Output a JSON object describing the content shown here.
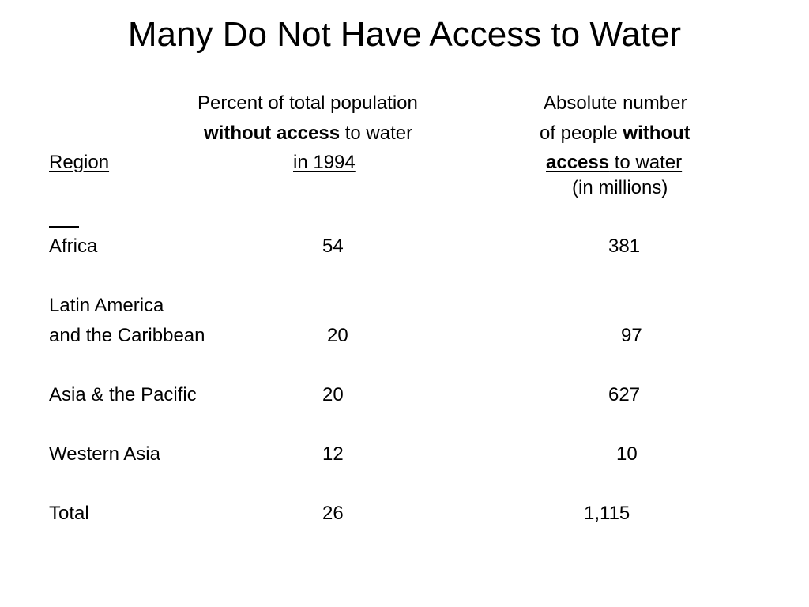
{
  "slide": {
    "title": "Many Do Not Have Access to Water"
  },
  "table": {
    "col_region_header": "Region",
    "col_percent_header": {
      "line1": "Percent of total population",
      "line2_bold": "without access",
      "line2_rest": " to water",
      "line3": "in 1994 "
    },
    "col_absolute_header": {
      "line1": "Absolute number",
      "line2_rest": "of people ",
      "line2_bold": "without",
      "line3_bold": "access",
      "line3_rest": " to water",
      "line4": "(in millions)"
    },
    "separator": "___",
    "rows": [
      {
        "region": "Africa",
        "percent": "54",
        "absolute": "381"
      },
      {
        "region_line1": "Latin America",
        "region": "and the Caribbean",
        "percent": "20",
        "absolute": "97"
      },
      {
        "region": "Asia & the Pacific",
        "percent": "20",
        "absolute": "627"
      },
      {
        "region": "Western Asia",
        "percent": "12",
        "absolute": "10"
      },
      {
        "region": "Total",
        "percent": "26",
        "absolute": "1,115"
      }
    ]
  }
}
